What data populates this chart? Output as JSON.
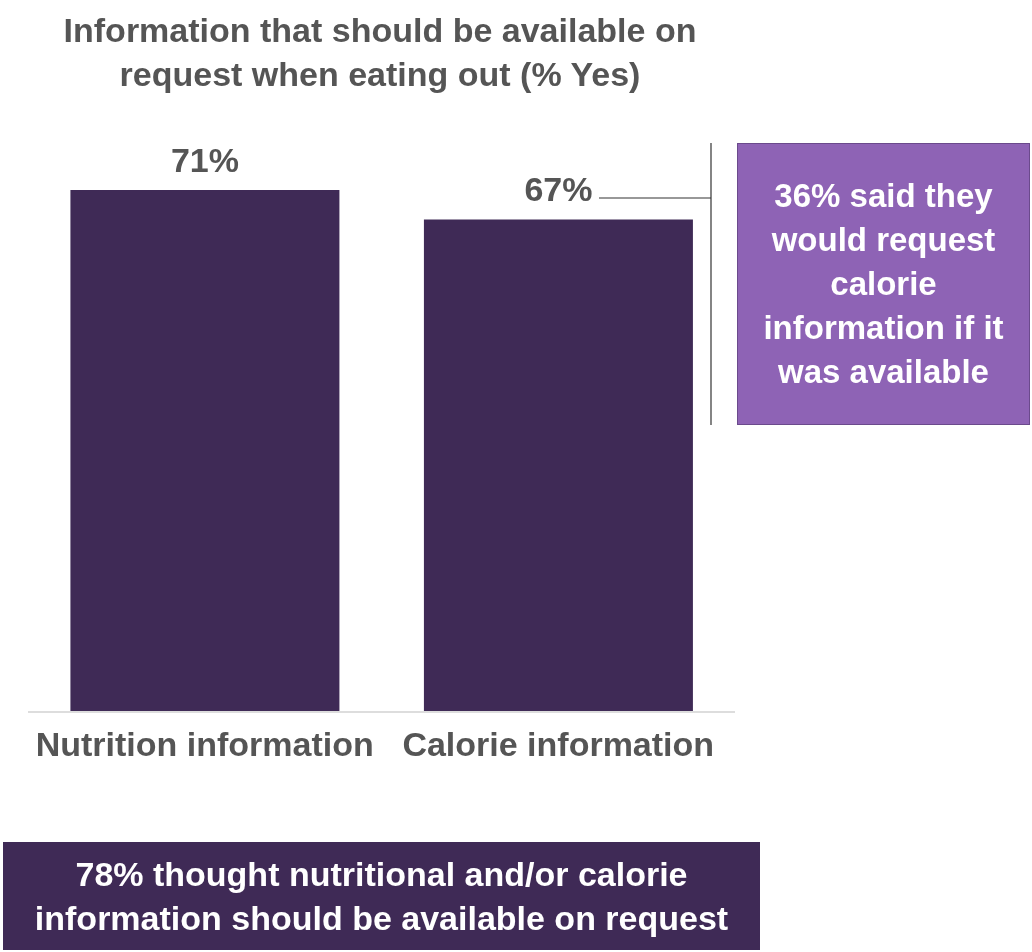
{
  "chart_data": {
    "type": "bar",
    "title": "Information that should be available on request when eating out (% Yes)",
    "categories": [
      "Nutrition information",
      "Calorie information"
    ],
    "values": [
      71,
      67
    ],
    "value_labels": [
      "71%",
      "67%"
    ],
    "color": "#3f2a56",
    "annotations": [
      "36% said they would request calorie information if it was available",
      "78% thought nutritional and/or calorie information should be available on request"
    ]
  }
}
